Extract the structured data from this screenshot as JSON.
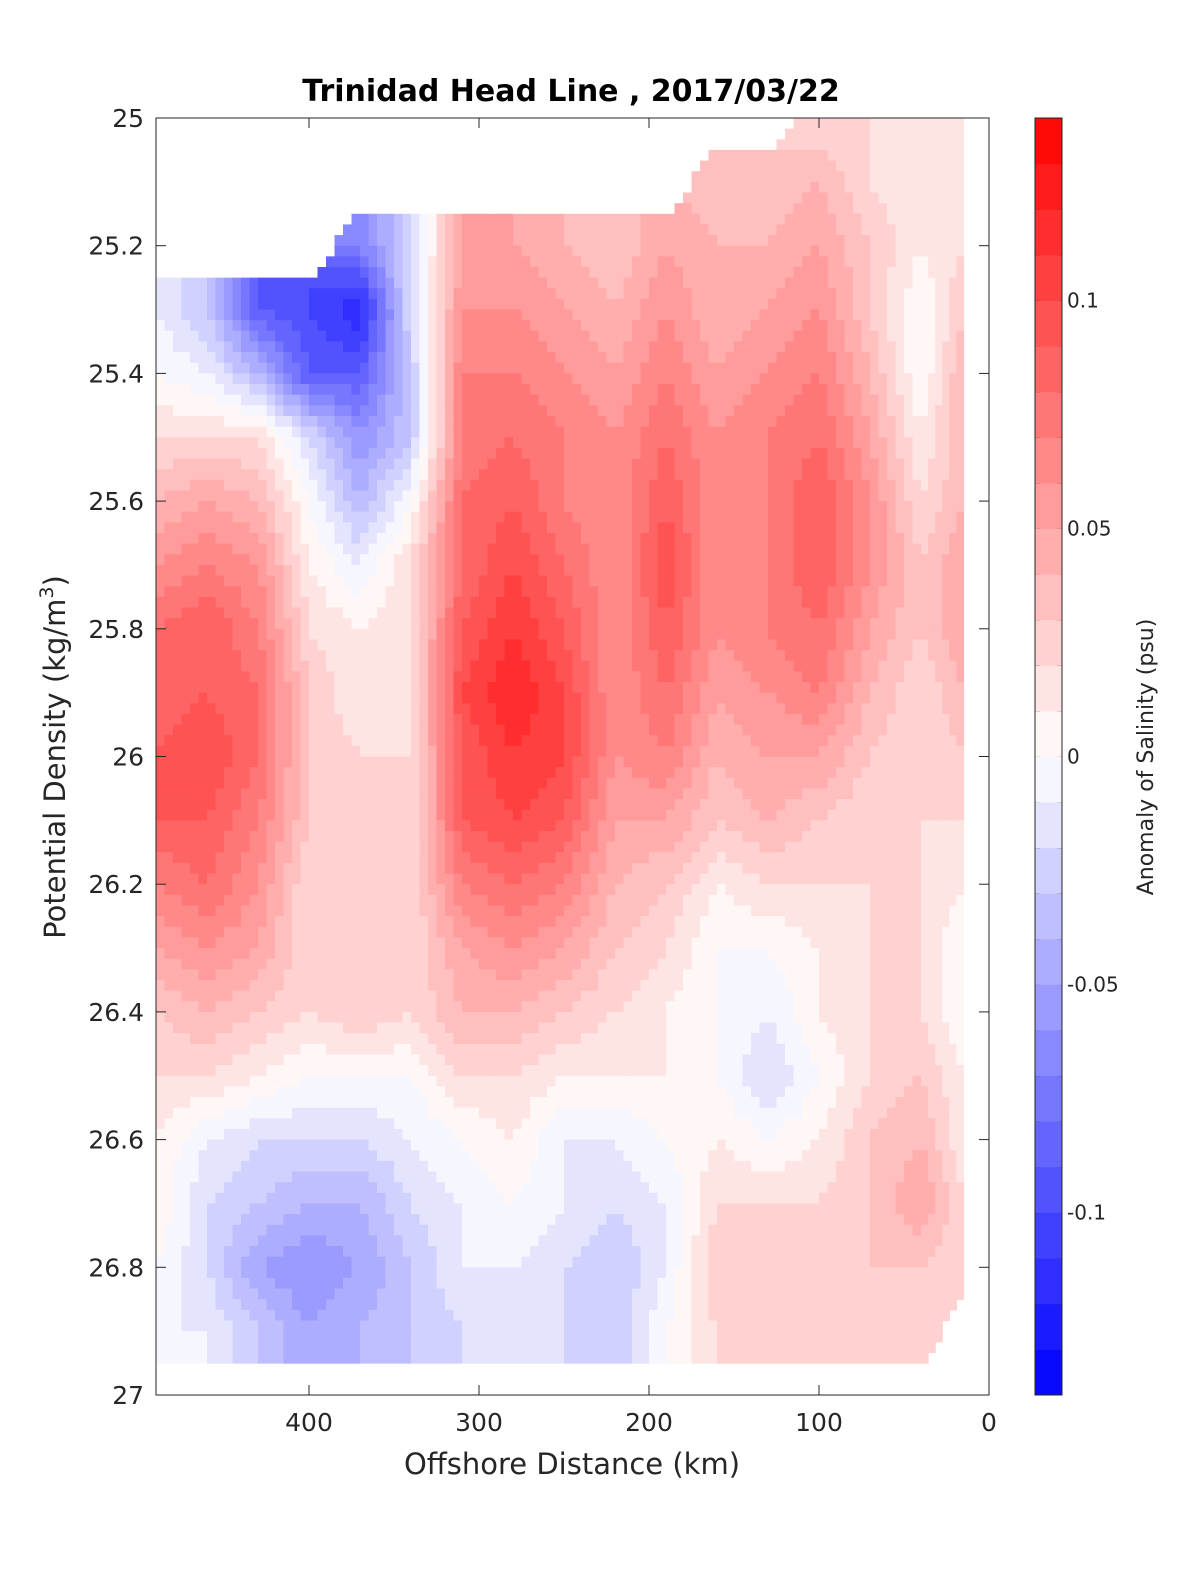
{
  "chart_data": {
    "type": "heatmap",
    "title": "Trinidad Head Line , 2017/03/22",
    "xlabel": "Offshore Distance (km)",
    "ylabel": "Potential Density (kg/m",
    "ylabel_sup": "3",
    "ylabel_close": ")",
    "x_reversed": true,
    "y_reversed": true,
    "xlim": [
      490,
      0
    ],
    "ylim": [
      25,
      27
    ],
    "x_ticks": [
      "400",
      "300",
      "200",
      "100",
      "0"
    ],
    "x_tick_values": [
      400,
      300,
      200,
      100,
      0
    ],
    "y_ticks": [
      "25",
      "25.2",
      "25.4",
      "25.6",
      "25.8",
      "26",
      "26.2",
      "26.4",
      "26.6",
      "26.8",
      "27"
    ],
    "y_tick_values": [
      25,
      25.2,
      25.4,
      25.6,
      25.8,
      26,
      26.2,
      26.4,
      26.6,
      26.8,
      27
    ],
    "colorbar": {
      "label": "Anomaly of Salinity (psu)",
      "ticks": [
        "0.1",
        "0.05",
        "0",
        "-0.05",
        "-0.1"
      ],
      "tick_values": [
        0.1,
        0.05,
        0,
        -0.05,
        -0.1
      ],
      "range": [
        -0.14,
        0.14
      ],
      "low_color": "#0000ff",
      "mid_color": "#ffffff",
      "high_color": "#ff0000",
      "levels": 28
    },
    "x": [
      490,
      460,
      430,
      400,
      370,
      340,
      310,
      280,
      250,
      220,
      190,
      160,
      130,
      100,
      70,
      40,
      15
    ],
    "y": [
      25.0,
      25.1,
      25.2,
      25.3,
      25.4,
      25.5,
      25.6,
      25.7,
      25.8,
      25.9,
      26.0,
      26.1,
      26.2,
      26.3,
      26.4,
      26.5,
      26.6,
      26.7,
      26.8,
      26.9,
      27.0
    ],
    "z": [
      [
        null,
        null,
        null,
        null,
        null,
        null,
        null,
        null,
        null,
        null,
        null,
        null,
        null,
        0.02,
        0.02,
        0.01,
        0.01
      ],
      [
        null,
        null,
        null,
        null,
        null,
        null,
        null,
        null,
        null,
        null,
        null,
        0.03,
        0.03,
        0.04,
        0.02,
        0.01,
        0.01
      ],
      [
        null,
        null,
        null,
        null,
        -0.07,
        -0.02,
        0.05,
        0.05,
        0.04,
        0.03,
        0.05,
        0.04,
        0.04,
        0.05,
        0.03,
        0.01,
        0.02
      ],
      [
        -0.01,
        -0.03,
        -0.09,
        -0.1,
        -0.12,
        -0.02,
        0.06,
        0.06,
        0.05,
        0.04,
        0.06,
        0.04,
        0.05,
        0.06,
        0.03,
        0.0,
        0.03
      ],
      [
        0.0,
        -0.01,
        -0.04,
        -0.09,
        -0.09,
        -0.03,
        0.07,
        0.07,
        0.06,
        0.05,
        0.07,
        0.05,
        0.06,
        0.07,
        0.04,
        0.0,
        0.04
      ],
      [
        0.02,
        0.02,
        0.02,
        -0.02,
        -0.06,
        -0.03,
        0.07,
        0.08,
        0.07,
        0.06,
        0.08,
        0.06,
        0.07,
        0.08,
        0.05,
        0.01,
        0.04
      ],
      [
        0.04,
        0.05,
        0.04,
        0.0,
        -0.04,
        0.0,
        0.08,
        0.09,
        0.07,
        0.06,
        0.09,
        0.06,
        0.07,
        0.09,
        0.06,
        0.02,
        0.04
      ],
      [
        0.06,
        0.07,
        0.06,
        0.01,
        -0.01,
        0.02,
        0.08,
        0.1,
        0.08,
        0.06,
        0.1,
        0.06,
        0.07,
        0.09,
        0.06,
        0.03,
        0.05
      ],
      [
        0.08,
        0.09,
        0.07,
        0.02,
        0.01,
        0.02,
        0.09,
        0.11,
        0.09,
        0.06,
        0.09,
        0.06,
        0.07,
        0.08,
        0.05,
        0.03,
        0.05
      ],
      [
        0.08,
        0.09,
        0.08,
        0.03,
        0.01,
        0.02,
        0.1,
        0.12,
        0.1,
        0.06,
        0.08,
        0.05,
        0.06,
        0.07,
        0.04,
        0.02,
        0.04
      ],
      [
        0.09,
        0.1,
        0.08,
        0.03,
        0.02,
        0.02,
        0.09,
        0.11,
        0.1,
        0.06,
        0.07,
        0.04,
        0.05,
        0.05,
        0.03,
        0.02,
        0.03
      ],
      [
        0.09,
        0.09,
        0.07,
        0.03,
        0.02,
        0.02,
        0.09,
        0.1,
        0.09,
        0.05,
        0.05,
        0.03,
        0.04,
        0.03,
        0.02,
        0.02,
        0.02
      ],
      [
        0.07,
        0.08,
        0.06,
        0.02,
        0.02,
        0.02,
        0.07,
        0.08,
        0.07,
        0.04,
        0.03,
        0.01,
        0.02,
        0.02,
        0.02,
        0.02,
        0.01
      ],
      [
        0.05,
        0.06,
        0.05,
        0.02,
        0.02,
        0.02,
        0.05,
        0.06,
        0.05,
        0.03,
        0.02,
        0.0,
        0.0,
        0.01,
        0.02,
        0.02,
        0.0
      ],
      [
        0.03,
        0.04,
        0.03,
        0.02,
        0.03,
        0.02,
        0.04,
        0.04,
        0.03,
        0.02,
        0.01,
        0.0,
        -0.01,
        0.01,
        0.02,
        0.02,
        0.0
      ],
      [
        0.02,
        0.02,
        0.01,
        0.0,
        0.0,
        0.0,
        0.02,
        0.02,
        0.01,
        0.01,
        0.01,
        0.0,
        -0.02,
        0.0,
        0.02,
        0.03,
        0.01
      ],
      [
        0.01,
        -0.01,
        -0.02,
        -0.02,
        -0.02,
        -0.01,
        0.0,
        0.01,
        -0.01,
        -0.01,
        0.0,
        0.01,
        0.0,
        0.01,
        0.03,
        0.04,
        0.01
      ],
      [
        0.01,
        -0.02,
        -0.03,
        -0.04,
        -0.04,
        -0.02,
        -0.01,
        0.0,
        -0.01,
        -0.02,
        -0.01,
        0.02,
        0.02,
        0.02,
        0.03,
        0.05,
        0.02
      ],
      [
        0.0,
        -0.02,
        -0.05,
        -0.06,
        -0.05,
        -0.03,
        -0.01,
        -0.01,
        -0.02,
        -0.03,
        -0.01,
        0.03,
        0.02,
        0.02,
        0.03,
        0.03,
        0.02
      ],
      [
        -0.01,
        -0.01,
        -0.03,
        -0.05,
        -0.04,
        -0.03,
        -0.02,
        -0.01,
        -0.02,
        -0.03,
        0.0,
        0.02,
        0.02,
        0.02,
        0.03,
        0.02,
        null
      ],
      [
        null,
        null,
        null,
        null,
        null,
        null,
        null,
        null,
        null,
        null,
        null,
        null,
        null,
        null,
        null,
        null,
        null
      ]
    ]
  }
}
